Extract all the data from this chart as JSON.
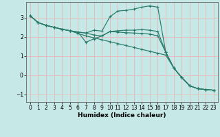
{
  "xlabel": "Humidex (Indice chaleur)",
  "xlim": [
    -0.5,
    23.5
  ],
  "ylim": [
    -1.4,
    3.8
  ],
  "xticks": [
    0,
    1,
    2,
    3,
    4,
    5,
    6,
    7,
    8,
    9,
    10,
    11,
    12,
    13,
    14,
    15,
    16,
    17,
    18,
    19,
    20,
    21,
    22,
    23
  ],
  "yticks": [
    -1,
    0,
    1,
    2,
    3
  ],
  "bg_color": "#c6e8e6",
  "line_color": "#2a7a6a",
  "grid_color": "#e8b8b8",
  "curves": [
    [
      3.1,
      2.75,
      2.6,
      2.5,
      2.4,
      2.32,
      2.25,
      2.2,
      2.35,
      2.3,
      3.05,
      3.35,
      3.38,
      3.45,
      3.55,
      3.62,
      3.55,
      1.2,
      0.38,
      -0.12,
      -0.55,
      -0.7,
      -0.75,
      -0.78
    ],
    [
      3.1,
      2.75,
      2.6,
      2.5,
      2.4,
      2.32,
      2.25,
      1.72,
      1.9,
      2.05,
      2.28,
      2.32,
      2.35,
      2.35,
      2.38,
      2.35,
      2.28,
      1.2,
      0.38,
      -0.12,
      -0.55,
      -0.7,
      -0.75,
      -0.78
    ],
    [
      3.1,
      2.75,
      2.6,
      2.5,
      2.4,
      2.32,
      2.25,
      2.2,
      2.1,
      2.05,
      2.28,
      2.25,
      2.22,
      2.2,
      2.18,
      2.15,
      2.05,
      1.2,
      0.38,
      -0.12,
      -0.55,
      -0.7,
      -0.75,
      -0.78
    ],
    [
      3.1,
      2.75,
      2.6,
      2.5,
      2.4,
      2.32,
      2.18,
      2.05,
      1.95,
      1.85,
      1.75,
      1.65,
      1.55,
      1.45,
      1.35,
      1.25,
      1.15,
      1.05,
      0.38,
      -0.12,
      -0.55,
      -0.7,
      -0.75,
      -0.78
    ]
  ]
}
